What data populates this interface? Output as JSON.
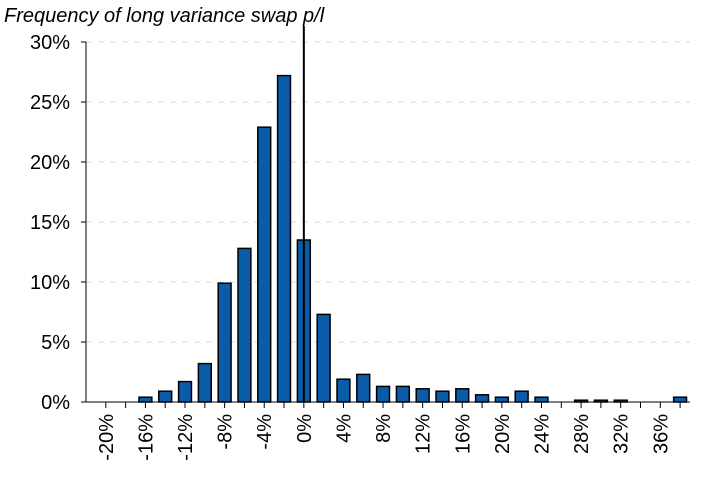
{
  "chart_data": {
    "type": "bar",
    "title": "Frequency of long variance swap p/l",
    "xlabel": "",
    "ylabel": "",
    "x_unit": "%",
    "y_unit": "%",
    "bar_width_data": 1.3,
    "bar_color": "#0b5ca8",
    "x_range": [
      -22,
      39
    ],
    "y_range": [
      0,
      30
    ],
    "y_ticks": [
      0,
      5,
      10,
      15,
      20,
      25,
      30
    ],
    "y_tick_labels": [
      "0%",
      "5%",
      "10%",
      "15%",
      "20%",
      "25%",
      "30%"
    ],
    "x_ticks": [
      -20,
      -16,
      -12,
      -8,
      -4,
      0,
      4,
      8,
      12,
      16,
      20,
      24,
      28,
      32,
      36
    ],
    "x_tick_labels": [
      "-20%",
      "-16%",
      "-12%",
      "-8%",
      "-4%",
      "0%",
      "4%",
      "8%",
      "12%",
      "16%",
      "20%",
      "24%",
      "28%",
      "32%",
      "36%"
    ],
    "grid": true,
    "zero_line_x": 0,
    "series": [
      {
        "x": [
          -16,
          -14,
          -12,
          -10,
          -8,
          -6,
          -4,
          -2,
          0,
          2,
          4,
          6,
          8,
          10,
          12,
          14,
          16,
          18,
          20,
          22,
          24,
          28,
          30,
          32,
          38
        ],
        "values": [
          0.4,
          0.9,
          1.7,
          3.2,
          9.9,
          12.8,
          22.9,
          27.2,
          13.5,
          7.3,
          1.9,
          2.3,
          1.3,
          1.3,
          1.1,
          0.9,
          1.1,
          0.6,
          0.4,
          0.9,
          0.4,
          0.15,
          0.15,
          0.15,
          0.4
        ]
      }
    ]
  }
}
